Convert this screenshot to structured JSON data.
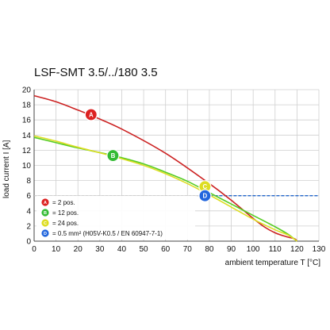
{
  "chart_data": {
    "type": "line",
    "title": "LSF-SMT 3.5/../180 3.5",
    "xlabel": "ambient temperature T [°C]",
    "ylabel": "load current I [A]",
    "xlim": [
      0,
      130
    ],
    "ylim": [
      0,
      20
    ],
    "x_ticks": [
      0,
      10,
      20,
      30,
      40,
      50,
      60,
      70,
      80,
      90,
      100,
      110,
      120,
      130
    ],
    "y_ticks": [
      0,
      2,
      4,
      6,
      8,
      10,
      12,
      14,
      16,
      18,
      20
    ],
    "grid": true,
    "legend_placement": "bottom-left",
    "series": [
      {
        "name": "= 2 pos.",
        "badge": "A",
        "color": "#cc2222",
        "badge_color": "#dd2222",
        "badge_at": [
          26,
          16.7
        ],
        "points": [
          [
            0,
            19.2
          ],
          [
            10,
            18.4
          ],
          [
            20,
            17.3
          ],
          [
            26,
            16.6
          ],
          [
            40,
            14.8
          ],
          [
            60,
            11.6
          ],
          [
            80,
            7.6
          ],
          [
            90,
            5.4
          ],
          [
            100,
            3.0
          ],
          [
            105,
            1.9
          ],
          [
            110,
            1.1
          ],
          [
            115,
            0.6
          ],
          [
            119,
            0.3
          ],
          [
            120,
            0
          ]
        ]
      },
      {
        "name": "= 12 pos.",
        "badge": "B",
        "color": "#55cc22",
        "badge_color": "#33bb33",
        "badge_at": [
          36,
          11.3
        ],
        "points": [
          [
            0,
            13.7
          ],
          [
            10,
            13.0
          ],
          [
            20,
            12.3
          ],
          [
            36,
            11.3
          ],
          [
            50,
            10.2
          ],
          [
            60,
            9.1
          ],
          [
            70,
            7.9
          ],
          [
            80,
            6.4
          ],
          [
            90,
            4.9
          ],
          [
            100,
            3.4
          ],
          [
            110,
            1.9
          ],
          [
            116,
            0.9
          ],
          [
            120,
            0
          ]
        ]
      },
      {
        "name": "= 24 pos.",
        "badge": "C",
        "color": "#dddd22",
        "badge_color": "#dddd22",
        "badge_at": [
          78,
          7.2
        ],
        "points": [
          [
            0,
            13.9
          ],
          [
            10,
            13.2
          ],
          [
            20,
            12.4
          ],
          [
            36,
            11.2
          ],
          [
            50,
            10.0
          ],
          [
            60,
            8.9
          ],
          [
            70,
            7.6
          ],
          [
            80,
            6.1
          ],
          [
            90,
            4.5
          ],
          [
            100,
            2.9
          ],
          [
            110,
            1.5
          ],
          [
            116,
            0.8
          ],
          [
            120,
            0
          ]
        ]
      }
    ],
    "reference": {
      "name": "= 0.5 mm² (H05V-K0.5 / EN 60947-7-1)",
      "badge": "D",
      "color": "#2266cc",
      "badge_color": "#2266dd",
      "y": 6,
      "solid_from_x": 78,
      "badge_at": [
        78,
        6.0
      ]
    }
  }
}
